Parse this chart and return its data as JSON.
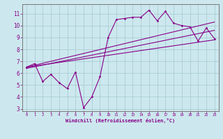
{
  "xlabel": "Windchill (Refroidissement éolien,°C)",
  "ylabel": "",
  "bg_color": "#cce8ee",
  "grid_color": "#aaccd4",
  "line_color": "#880088",
  "spine_color": "#777777",
  "xlim": [
    -0.5,
    23.5
  ],
  "ylim": [
    2.8,
    11.8
  ],
  "xticks": [
    0,
    1,
    2,
    3,
    4,
    5,
    6,
    7,
    8,
    9,
    10,
    11,
    12,
    13,
    14,
    15,
    16,
    17,
    18,
    19,
    20,
    21,
    22,
    23
  ],
  "yticks": [
    3,
    4,
    5,
    6,
    7,
    8,
    9,
    10,
    11
  ],
  "data_line": {
    "x": [
      0,
      1,
      2,
      3,
      4,
      5,
      6,
      7,
      8,
      9,
      10,
      11,
      12,
      13,
      14,
      15,
      16,
      17,
      18,
      19,
      20,
      21,
      22,
      23
    ],
    "y": [
      6.5,
      6.8,
      5.3,
      5.9,
      5.2,
      4.7,
      6.1,
      3.1,
      4.0,
      5.7,
      9.0,
      10.5,
      10.6,
      10.7,
      10.7,
      11.3,
      10.4,
      11.2,
      10.2,
      10.0,
      9.9,
      8.7,
      9.8,
      8.9
    ]
  },
  "reg_line1": {
    "x": [
      0,
      23
    ],
    "y": [
      6.5,
      8.8
    ]
  },
  "reg_line2": {
    "x": [
      0,
      23
    ],
    "y": [
      6.4,
      9.6
    ]
  },
  "reg_line3": {
    "x": [
      0,
      23
    ],
    "y": [
      6.5,
      10.3
    ]
  },
  "xlabel_fontsize": 5.0,
  "ylabel_fontsize": 5.0,
  "xtick_fontsize": 4.0,
  "ytick_fontsize": 5.5
}
